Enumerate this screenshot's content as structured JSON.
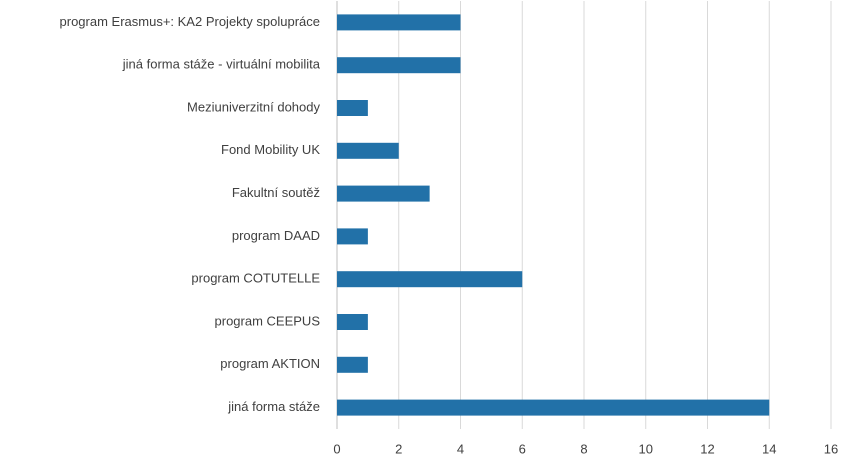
{
  "chart_data": {
    "type": "bar",
    "orientation": "horizontal",
    "categories": [
      "program Erasmus+: KA2 Projekty spolupráce",
      "jiná forma stáže - virtuální mobilita",
      "Meziuniverzitní dohody",
      "Fond Mobility UK",
      "Fakultní soutěž",
      "program DAAD",
      "program COTUTELLE",
      "program CEEPUS",
      "program AKTION",
      "jiná forma stáže"
    ],
    "values": [
      4,
      4,
      1,
      2,
      3,
      1,
      6,
      1,
      1,
      14
    ],
    "color": "#2271a8",
    "xlim": [
      0,
      16
    ],
    "xticks": [
      0,
      2,
      4,
      6,
      8,
      10,
      12,
      14,
      16
    ],
    "grid": true
  }
}
